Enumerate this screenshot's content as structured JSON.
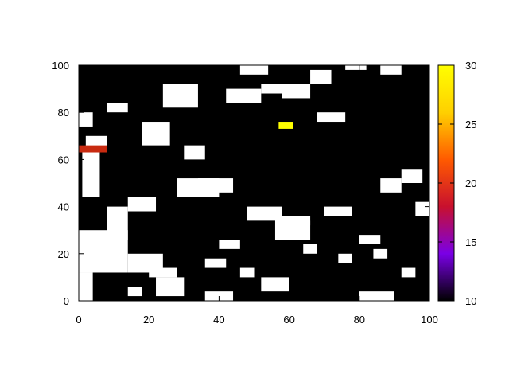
{
  "chart_data": {
    "type": "heatmap",
    "title": "",
    "xlabel": "",
    "ylabel": "",
    "xlim": [
      0,
      100
    ],
    "ylim": [
      0,
      100
    ],
    "x_ticks": [
      "0",
      "20",
      "40",
      "60",
      "80",
      "100"
    ],
    "y_ticks": [
      "0",
      "20",
      "40",
      "60",
      "80",
      "100"
    ],
    "colorbar": {
      "range": [
        10,
        30
      ],
      "ticks": [
        "10",
        "15",
        "20",
        "25",
        "30"
      ],
      "palette": [
        "#000000",
        "#7a00e6",
        "#c8102e",
        "#ff5a00",
        "#ffd000",
        "#ffff00"
      ]
    },
    "background_value_color": "#000000",
    "regions": [
      {
        "label": "white-patch",
        "value": null,
        "color": "#ffffff",
        "cells": [
          [
            0,
            0,
            4,
            12
          ],
          [
            0,
            12,
            14,
            30
          ],
          [
            14,
            12,
            24,
            20
          ],
          [
            22,
            2,
            30,
            10
          ],
          [
            8,
            26,
            14,
            40
          ],
          [
            14,
            38,
            22,
            44
          ],
          [
            1,
            44,
            6,
            64
          ],
          [
            2,
            64,
            8,
            70
          ],
          [
            18,
            66,
            26,
            76
          ],
          [
            24,
            82,
            34,
            92
          ],
          [
            30,
            60,
            36,
            66
          ],
          [
            28,
            44,
            40,
            52
          ],
          [
            34,
            46,
            44,
            52
          ],
          [
            48,
            34,
            58,
            40
          ],
          [
            56,
            26,
            66,
            36
          ],
          [
            84,
            18,
            88,
            22
          ],
          [
            80,
            24,
            86,
            28
          ],
          [
            70,
            36,
            78,
            40
          ],
          [
            52,
            4,
            60,
            10
          ],
          [
            36,
            0,
            44,
            4
          ],
          [
            80,
            0,
            90,
            4
          ],
          [
            0,
            74,
            4,
            80
          ],
          [
            8,
            80,
            14,
            84
          ],
          [
            42,
            84,
            52,
            90
          ],
          [
            52,
            88,
            64,
            92
          ],
          [
            58,
            86,
            66,
            92
          ],
          [
            68,
            76,
            76,
            80
          ],
          [
            46,
            96,
            54,
            100
          ],
          [
            66,
            92,
            72,
            98
          ],
          [
            76,
            98,
            82,
            100
          ],
          [
            86,
            96,
            92,
            100
          ],
          [
            86,
            46,
            92,
            52
          ],
          [
            92,
            50,
            98,
            56
          ],
          [
            96,
            36,
            100,
            42
          ],
          [
            20,
            10,
            28,
            14
          ],
          [
            14,
            2,
            18,
            6
          ],
          [
            60,
            32,
            66,
            34
          ],
          [
            36,
            14,
            42,
            18
          ],
          [
            40,
            22,
            46,
            26
          ],
          [
            46,
            10,
            50,
            14
          ],
          [
            64,
            20,
            68,
            24
          ],
          [
            74,
            16,
            78,
            20
          ],
          [
            92,
            10,
            96,
            14
          ]
        ]
      },
      {
        "label": "hot-spot-orange",
        "value": 22,
        "color": "#c82a10",
        "cells": [
          [
            0,
            63,
            8,
            66
          ]
        ]
      },
      {
        "label": "hot-spot-yellow",
        "value": 30,
        "color": "#ffff00",
        "cells": [
          [
            57,
            73,
            61,
            76
          ]
        ]
      }
    ]
  }
}
